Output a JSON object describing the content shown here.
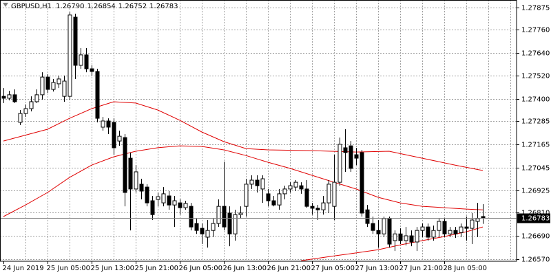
{
  "chart_data": {
    "type": "candlestick",
    "title": "GBPUSD,H1",
    "ohlc_labels": [
      "1.26790",
      "1.26854",
      "1.26752",
      "1.26783"
    ],
    "up_color": "#ffffff",
    "down_color": "#000000",
    "grid": true,
    "xlim": [
      -0.625,
      93.125
    ],
    "ylim": [
      1.26558,
      1.27914
    ],
    "yticks": [
      1.27875,
      {
        "value": 1.2776,
        "label": "1.27760"
      },
      {
        "value": 1.2764,
        "label": "1.27640"
      },
      {
        "value": 1.2752,
        "label": "1.27520"
      },
      {
        "value": 1.274,
        "label": "1.27400"
      },
      1.27285,
      1.27165,
      1.27045,
      1.26925,
      {
        "value": 1.2681,
        "label": "1.26810"
      },
      {
        "value": 1.2669,
        "label": "1.26690"
      },
      {
        "value": 1.2657,
        "label": "1.26570"
      }
    ],
    "xticks": [
      {
        "value": 0,
        "label": "24 Jun 2019"
      },
      {
        "value": 8,
        "label": "25 Jun 05:00"
      },
      {
        "value": 16,
        "label": "25 Jun 13:00"
      },
      {
        "value": 24,
        "label": "25 Jun 21:00"
      },
      {
        "value": 32,
        "label": "26 Jun 05:00"
      },
      {
        "value": 40,
        "label": "26 Jun 13:00"
      },
      {
        "value": 48,
        "label": "26 Jun 21:00"
      },
      {
        "value": 56,
        "label": "27 Jun 05:00"
      },
      {
        "value": 64,
        "label": "27 Jun 13:00"
      },
      {
        "value": 72,
        "label": "27 Jun 21:00"
      },
      {
        "value": 80,
        "label": "28 Jun 05:00"
      }
    ],
    "xgrid": [
      4,
      8,
      12,
      16,
      20,
      24,
      28,
      32,
      36,
      40,
      44,
      48,
      52,
      56,
      60,
      64,
      68,
      72,
      76,
      80,
      84,
      88,
      92
    ],
    "last_price": {
      "value": 1.26783,
      "label": "1.26783"
    },
    "open": [
      1.27414,
      1.27404,
      1.27422,
      1.27279,
      1.27325,
      1.2735,
      1.27386,
      1.27422,
      1.27514,
      1.2745,
      1.27479,
      1.27414,
      1.27414,
      1.27825,
      1.27575,
      1.27629,
      1.27557,
      1.27543,
      1.27254,
      1.27286,
      1.27279,
      1.27182,
      1.272,
      1.27093,
      1.26933,
      1.26958,
      1.26943,
      1.26872,
      1.26879,
      1.26861,
      1.26897,
      1.2685,
      1.26861,
      1.26836,
      1.26843,
      1.26754,
      1.26729,
      1.26683,
      1.26718,
      1.26754,
      1.26843,
      1.26808,
      1.267,
      1.268,
      1.26843,
      1.26958,
      1.26979,
      1.26933,
      1.26908,
      1.26872,
      1.2685,
      1.26908,
      1.26933,
      1.26943,
      1.2695,
      1.26933,
      1.26843,
      1.26833,
      1.26825,
      1.26861,
      1.26843,
      1.26968,
      1.27147,
      1.27157,
      1.27111,
      1.27122,
      1.26825,
      1.26754,
      1.26718,
      1.267,
      1.26779,
      1.26665,
      1.267,
      1.26665,
      1.2669,
      1.26658,
      1.26718,
      1.26736,
      1.26683,
      1.26718,
      1.26765,
      1.267,
      1.26718,
      1.26707,
      1.26736,
      1.26729,
      1.26765,
      1.2679
    ],
    "high": [
      1.27457,
      1.27443,
      1.2745,
      1.27343,
      1.27372,
      1.27414,
      1.2745,
      1.27539,
      1.27529,
      1.27504,
      1.27522,
      1.27522,
      1.2785,
      1.27843,
      1.27664,
      1.27664,
      1.27575,
      1.27557,
      1.27307,
      1.273,
      1.273,
      1.27236,
      1.27218,
      1.27122,
      1.27057,
      1.26986,
      1.26958,
      1.26897,
      1.26915,
      1.26943,
      1.26922,
      1.26897,
      1.26879,
      1.26872,
      1.26861,
      1.26779,
      1.26754,
      1.26772,
      1.26779,
      1.26879,
      1.27075,
      1.26843,
      1.26825,
      1.26843,
      1.26986,
      1.27004,
      1.27004,
      1.27004,
      1.26933,
      1.26897,
      1.26933,
      1.2695,
      1.26968,
      1.26979,
      1.26968,
      1.26979,
      1.26861,
      1.2685,
      1.26897,
      1.26979,
      1.27111,
      1.272,
      1.27243,
      1.27182,
      1.27147,
      1.27136,
      1.2685,
      1.2679,
      1.26772,
      1.2679,
      1.2679,
      1.26718,
      1.26729,
      1.26736,
      1.26718,
      1.26736,
      1.26754,
      1.26754,
      1.26743,
      1.26779,
      1.26779,
      1.26736,
      1.26736,
      1.26754,
      1.2679,
      1.26808,
      1.26861,
      1.26854
    ],
    "low": [
      1.27379,
      1.27393,
      1.27379,
      1.27265,
      1.27307,
      1.27336,
      1.27379,
      1.27397,
      1.27432,
      1.27439,
      1.27457,
      1.27386,
      1.27397,
      1.27504,
      1.27557,
      1.27539,
      1.27522,
      1.27279,
      1.27236,
      1.27218,
      1.27111,
      1.27157,
      1.26843,
      1.26718,
      1.26915,
      1.26879,
      1.26843,
      1.26772,
      1.26843,
      1.26843,
      1.26825,
      1.26736,
      1.268,
      1.26825,
      1.26718,
      1.267,
      1.26647,
      1.26629,
      1.26683,
      1.26736,
      1.26718,
      1.26636,
      1.26665,
      1.26779,
      1.2679,
      1.26933,
      1.26915,
      1.26861,
      1.26843,
      1.26843,
      1.26825,
      1.26879,
      1.26915,
      1.26922,
      1.26908,
      1.26836,
      1.268,
      1.26772,
      1.268,
      1.26808,
      1.26772,
      1.2695,
      1.27022,
      1.27022,
      1.27057,
      1.2679,
      1.26736,
      1.267,
      1.26629,
      1.26683,
      1.26629,
      1.26611,
      1.26647,
      1.2664,
      1.26636,
      1.26611,
      1.26683,
      1.26665,
      1.26665,
      1.26683,
      1.26683,
      1.26683,
      1.26679,
      1.26683,
      1.26665,
      1.26647,
      1.26683,
      1.26752
    ],
    "close": [
      1.27404,
      1.27422,
      1.27386,
      1.27325,
      1.2735,
      1.27386,
      1.27422,
      1.27514,
      1.2745,
      1.27486,
      1.27504,
      1.27493,
      1.27836,
      1.27575,
      1.27629,
      1.27557,
      1.27543,
      1.273,
      1.27286,
      1.27254,
      1.27147,
      1.27207,
      1.26915,
      1.26933,
      1.27022,
      1.26922,
      1.26861,
      1.268,
      1.26893,
      1.26908,
      1.2685,
      1.26872,
      1.26836,
      1.26858,
      1.26736,
      1.26718,
      1.267,
      1.26718,
      1.26754,
      1.26843,
      1.26736,
      1.267,
      1.268,
      1.26808,
      1.26958,
      1.26979,
      1.2695,
      1.26986,
      1.26872,
      1.2685,
      1.26908,
      1.26933,
      1.2695,
      1.26968,
      1.26933,
      1.26843,
      1.26833,
      1.26825,
      1.26861,
      1.26958,
      1.26968,
      1.27165,
      1.27122,
      1.2704,
      1.27093,
      1.26808,
      1.26754,
      1.26718,
      1.267,
      1.26779,
      1.26647,
      1.267,
      1.26665,
      1.2669,
      1.26658,
      1.26718,
      1.26736,
      1.26683,
      1.26718,
      1.26765,
      1.267,
      1.26718,
      1.267,
      1.26736,
      1.26729,
      1.26772,
      1.26779,
      1.26783
    ],
    "series": [
      {
        "color": "#e00000",
        "x": [
          0,
          8,
          12,
          16,
          20,
          24,
          28,
          32,
          36,
          40,
          44,
          48,
          56,
          64,
          70,
          76,
          82,
          87
        ],
        "values": [
          1.27182,
          1.27243,
          1.273,
          1.2735,
          1.27386,
          1.27379,
          1.27343,
          1.2729,
          1.27229,
          1.27179,
          1.27143,
          1.27136,
          1.27132,
          1.27125,
          1.27129,
          1.27093,
          1.27057,
          1.27029
        ]
      },
      {
        "color": "#e00000",
        "x": [
          0,
          4,
          8,
          12,
          16,
          20,
          24,
          28,
          32,
          36,
          40,
          44,
          48,
          52,
          56,
          60,
          64,
          68,
          72,
          76,
          80,
          84,
          87
        ],
        "values": [
          1.2679,
          1.2685,
          1.26915,
          1.26993,
          1.27057,
          1.271,
          1.27129,
          1.27147,
          1.27157,
          1.27154,
          1.27136,
          1.27107,
          1.27072,
          1.2704,
          1.27004,
          1.26968,
          1.26933,
          1.2689,
          1.26861,
          1.26843,
          1.26836,
          1.26829,
          1.26825
        ]
      },
      {
        "color": "#e00000",
        "x": [
          54,
          55,
          60,
          64,
          68,
          72,
          76,
          80,
          84,
          87
        ],
        "values": [
          1.26561,
          1.26565,
          1.26586,
          1.26601,
          1.26618,
          1.26643,
          1.26665,
          1.26686,
          1.26711,
          1.26736
        ]
      }
    ]
  }
}
